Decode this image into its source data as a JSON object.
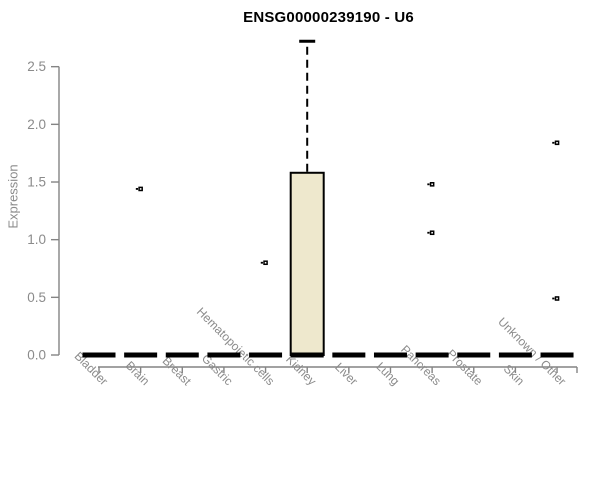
{
  "chart_data": {
    "type": "boxplot",
    "title": "ENSG00000239190 - U6",
    "xlabel": "",
    "ylabel": "Expression",
    "y_ticks": [
      0.0,
      0.5,
      1.0,
      1.5,
      2.0,
      2.5
    ],
    "ylim": [
      0.0,
      2.8
    ],
    "grid": false,
    "legend": "none",
    "categories": [
      "Bladder",
      "Brain",
      "Breast",
      "Gastric",
      "Hematopoietic cells",
      "Kidney",
      "Liver",
      "Lung",
      "Pancreas",
      "Prostate",
      "Skin",
      "Unknown / Other"
    ],
    "series": [
      {
        "category": "Bladder",
        "q1": 0,
        "median": 0,
        "q3": 0,
        "whisker_low": 0,
        "whisker_high": 0,
        "outliers": []
      },
      {
        "category": "Brain",
        "q1": 0,
        "median": 0,
        "q3": 0,
        "whisker_low": 0,
        "whisker_high": 0,
        "outliers": [
          1.44
        ]
      },
      {
        "category": "Breast",
        "q1": 0,
        "median": 0,
        "q3": 0,
        "whisker_low": 0,
        "whisker_high": 0,
        "outliers": []
      },
      {
        "category": "Gastric",
        "q1": 0,
        "median": 0,
        "q3": 0,
        "whisker_low": 0,
        "whisker_high": 0,
        "outliers": []
      },
      {
        "category": "Hematopoietic cells",
        "q1": 0,
        "median": 0,
        "q3": 0,
        "whisker_low": 0,
        "whisker_high": 0,
        "outliers": [
          0.8
        ]
      },
      {
        "category": "Kidney",
        "q1": 0,
        "median": 0,
        "q3": 1.58,
        "whisker_low": 0,
        "whisker_high": 2.72,
        "outliers": []
      },
      {
        "category": "Liver",
        "q1": 0,
        "median": 0,
        "q3": 0,
        "whisker_low": 0,
        "whisker_high": 0,
        "outliers": []
      },
      {
        "category": "Lung",
        "q1": 0,
        "median": 0,
        "q3": 0,
        "whisker_low": 0,
        "whisker_high": 0,
        "outliers": []
      },
      {
        "category": "Pancreas",
        "q1": 0,
        "median": 0,
        "q3": 0,
        "whisker_low": 0,
        "whisker_high": 0,
        "outliers": [
          1.48,
          1.06
        ]
      },
      {
        "category": "Prostate",
        "q1": 0,
        "median": 0,
        "q3": 0,
        "whisker_low": 0,
        "whisker_high": 0,
        "outliers": []
      },
      {
        "category": "Skin",
        "q1": 0,
        "median": 0,
        "q3": 0,
        "whisker_low": 0,
        "whisker_high": 0,
        "outliers": []
      },
      {
        "category": "Unknown / Other",
        "q1": 0,
        "median": 0,
        "q3": 0,
        "whisker_low": 0,
        "whisker_high": 0,
        "outliers": [
          1.84,
          0.49
        ]
      }
    ],
    "colors": {
      "box_fill": "#EEE8CD",
      "box_stroke": "#000000",
      "median": "#000000",
      "outlier": "#000000",
      "axis_line": "#848484",
      "tick_text": "#8B8B8B",
      "title_text": "#000000",
      "background": "#FFFFFF"
    }
  }
}
